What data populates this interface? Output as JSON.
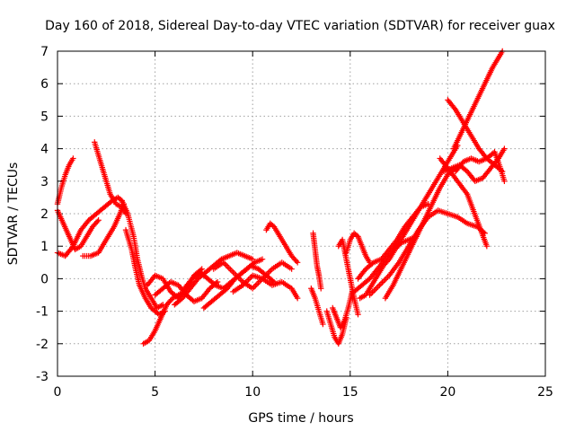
{
  "chart_data": {
    "type": "scatter",
    "title": "Day 160 of 2018, Sidereal Day-to-day VTEC variation (SDTVAR) for receiver guax",
    "xlabel": "GPS time / hours",
    "ylabel": "SDTVAR / TECUs",
    "xlim": [
      0,
      25
    ],
    "ylim": [
      -3,
      7
    ],
    "xticks": [
      "0",
      "5",
      "10",
      "15",
      "20",
      "25"
    ],
    "yticks": [
      "-3",
      "-2",
      "-1",
      "0",
      "1",
      "2",
      "3",
      "4",
      "5",
      "6",
      "7"
    ],
    "grid": true,
    "marker": "+",
    "color": "#ff0000",
    "series": [
      {
        "x": [
          0.0,
          0.2,
          0.4,
          0.6,
          0.8
        ],
        "y": [
          2.3,
          2.8,
          3.2,
          3.5,
          3.7
        ]
      },
      {
        "x": [
          0.0,
          0.3,
          0.6,
          0.9,
          1.2,
          1.5,
          1.8,
          2.1
        ],
        "y": [
          2.1,
          1.7,
          1.3,
          0.9,
          1.0,
          1.3,
          1.6,
          1.8
        ]
      },
      {
        "x": [
          0.0,
          0.4,
          0.8,
          1.2,
          1.6,
          2.0,
          2.4,
          2.8,
          3.1,
          3.3
        ],
        "y": [
          0.8,
          0.7,
          1.0,
          1.5,
          1.8,
          2.0,
          2.2,
          2.4,
          2.5,
          2.4
        ]
      },
      {
        "x": [
          1.3,
          1.7,
          2.1,
          2.5,
          2.9,
          3.2,
          3.4
        ],
        "y": [
          0.7,
          0.7,
          0.8,
          1.2,
          1.6,
          2.0,
          2.3
        ]
      },
      {
        "x": [
          1.9,
          2.1,
          2.4,
          2.7,
          3.0,
          3.3,
          3.5
        ],
        "y": [
          4.2,
          3.8,
          3.2,
          2.6,
          2.3,
          2.2,
          2.0
        ]
      },
      {
        "x": [
          3.3,
          3.6,
          3.9,
          4.1,
          4.3,
          4.5,
          4.8,
          5.1,
          5.4
        ],
        "y": [
          2.4,
          2.0,
          1.3,
          0.6,
          0.1,
          -0.3,
          -0.6,
          -0.9,
          -0.8
        ]
      },
      {
        "x": [
          3.5,
          3.8,
          4.0,
          4.2,
          4.5,
          4.8,
          5.2,
          5.5
        ],
        "y": [
          1.5,
          0.9,
          0.3,
          -0.2,
          -0.6,
          -0.9,
          -1.1,
          -1.0
        ]
      },
      {
        "x": [
          4.4,
          4.7,
          5.0,
          5.3,
          5.6,
          5.9,
          6.2,
          6.5
        ],
        "y": [
          -2.0,
          -1.9,
          -1.6,
          -1.2,
          -0.8,
          -0.6,
          -0.5,
          -0.4
        ]
      },
      {
        "x": [
          4.6,
          5.0,
          5.4,
          5.8,
          6.2,
          6.6,
          7.0,
          7.4
        ],
        "y": [
          -0.2,
          0.1,
          0.0,
          -0.4,
          -0.6,
          -0.3,
          0.1,
          0.3
        ]
      },
      {
        "x": [
          5.0,
          5.4,
          5.8,
          6.2,
          6.6,
          7.0,
          7.4,
          7.8,
          8.2
        ],
        "y": [
          -0.5,
          -0.3,
          -0.1,
          -0.2,
          -0.5,
          -0.7,
          -0.6,
          -0.3,
          -0.1
        ]
      },
      {
        "x": [
          6.0,
          6.4,
          6.8,
          7.2,
          7.6,
          8.0,
          8.4,
          8.8,
          9.2,
          9.6,
          10.0
        ],
        "y": [
          -0.8,
          -0.6,
          -0.3,
          0.0,
          0.2,
          0.4,
          0.6,
          0.7,
          0.8,
          0.7,
          0.6
        ]
      },
      {
        "x": [
          6.5,
          6.9,
          7.3,
          7.7,
          8.1,
          8.5,
          8.9,
          9.3,
          9.7,
          10.1,
          10.5
        ],
        "y": [
          -0.3,
          0.0,
          0.2,
          0.0,
          -0.2,
          -0.3,
          -0.1,
          0.1,
          0.3,
          0.5,
          0.6
        ]
      },
      {
        "x": [
          7.5,
          7.9,
          8.3,
          8.7,
          9.1,
          9.5,
          9.9,
          10.3,
          10.7,
          11.1
        ],
        "y": [
          -0.9,
          -0.7,
          -0.5,
          -0.3,
          0.0,
          0.2,
          0.4,
          0.3,
          0.1,
          -0.1
        ]
      },
      {
        "x": [
          8.0,
          8.5,
          9.0,
          9.5,
          10.0,
          10.5,
          11.0,
          11.5,
          12.0
        ],
        "y": [
          0.3,
          0.5,
          0.2,
          -0.1,
          -0.3,
          0.0,
          0.3,
          0.5,
          0.3
        ]
      },
      {
        "x": [
          9.0,
          9.5,
          10.0,
          10.5,
          11.0,
          11.5,
          12.0,
          12.3
        ],
        "y": [
          -0.4,
          -0.2,
          0.1,
          0.0,
          -0.2,
          -0.1,
          -0.3,
          -0.6
        ]
      },
      {
        "x": [
          10.7,
          10.9,
          11.1,
          11.4,
          11.7,
          12.0,
          12.3
        ],
        "y": [
          1.5,
          1.7,
          1.6,
          1.3,
          1.0,
          0.7,
          0.5
        ]
      },
      {
        "x": [
          13.1,
          13.2,
          13.3,
          13.4,
          13.5
        ],
        "y": [
          1.4,
          0.9,
          0.4,
          0.1,
          -0.3
        ]
      },
      {
        "x": [
          13.0,
          13.2,
          13.4,
          13.6
        ],
        "y": [
          -0.3,
          -0.6,
          -1.0,
          -1.4
        ]
      },
      {
        "x": [
          13.8,
          14.0,
          14.2,
          14.4,
          14.6,
          14.8
        ],
        "y": [
          -1.0,
          -1.4,
          -1.8,
          -2.0,
          -1.7,
          -1.2
        ]
      },
      {
        "x": [
          14.1,
          14.3,
          14.5,
          14.7,
          14.9,
          15.1
        ],
        "y": [
          -0.9,
          -1.2,
          -1.5,
          -1.3,
          -0.9,
          -0.4
        ]
      },
      {
        "x": [
          14.4,
          14.6,
          14.8,
          15.0,
          15.2,
          15.4
        ],
        "y": [
          1.0,
          1.2,
          0.6,
          0.0,
          -0.6,
          -1.1
        ]
      },
      {
        "x": [
          14.8,
          15.0,
          15.2,
          15.4,
          15.6,
          15.8,
          16.0
        ],
        "y": [
          0.8,
          1.2,
          1.4,
          1.3,
          1.0,
          0.7,
          0.5
        ]
      },
      {
        "x": [
          15.2,
          15.6,
          16.0,
          16.4,
          16.8,
          17.2,
          17.6,
          18.0,
          18.4
        ],
        "y": [
          -0.4,
          -0.2,
          0.0,
          0.3,
          0.6,
          0.9,
          1.1,
          1.2,
          1.3
        ]
      },
      {
        "x": [
          15.4,
          15.8,
          16.2,
          16.6,
          17.0,
          17.4,
          17.8,
          18.2,
          18.6,
          19.0
        ],
        "y": [
          0.0,
          0.3,
          0.5,
          0.6,
          0.9,
          1.2,
          1.6,
          1.9,
          2.2,
          2.3
        ]
      },
      {
        "x": [
          15.5,
          15.8,
          16.1,
          16.4,
          16.7,
          17.0,
          17.3,
          17.6
        ],
        "y": [
          -0.6,
          -0.5,
          -0.2,
          0.1,
          0.4,
          0.6,
          0.9,
          1.1
        ]
      },
      {
        "x": [
          16.0,
          16.5,
          17.0,
          17.5,
          18.0,
          18.5,
          19.0,
          19.5,
          20.0,
          20.5,
          21.0,
          21.5,
          21.9
        ],
        "y": [
          -0.5,
          -0.2,
          0.1,
          0.5,
          1.0,
          1.5,
          1.9,
          2.1,
          2.0,
          1.9,
          1.7,
          1.6,
          1.4
        ]
      },
      {
        "x": [
          16.8,
          17.2,
          17.6,
          18.0,
          18.4,
          18.8,
          19.2,
          19.6,
          20.0,
          20.4
        ],
        "y": [
          -0.6,
          -0.2,
          0.3,
          0.8,
          1.3,
          1.8,
          2.3,
          2.8,
          3.2,
          3.4
        ]
      },
      {
        "x": [
          17.3,
          17.7,
          18.1,
          18.5,
          18.9,
          19.3,
          19.7,
          20.1,
          20.5
        ],
        "y": [
          1.0,
          1.3,
          1.7,
          2.1,
          2.5,
          2.9,
          3.3,
          3.7,
          4.1
        ]
      },
      {
        "x": [
          20.0,
          20.4,
          20.8,
          21.2,
          21.6,
          22.0,
          22.4,
          22.8
        ],
        "y": [
          5.5,
          5.2,
          4.8,
          4.4,
          4.0,
          3.7,
          3.5,
          3.3
        ]
      },
      {
        "x": [
          20.3,
          20.7,
          21.1,
          21.5,
          21.9,
          22.3,
          22.8
        ],
        "y": [
          4.0,
          4.5,
          5.0,
          5.5,
          6.0,
          6.5,
          7.0
        ]
      },
      {
        "x": [
          19.8,
          20.2,
          20.6,
          21.0,
          21.4,
          21.8,
          22.2,
          22.6,
          22.9
        ],
        "y": [
          3.3,
          3.4,
          3.5,
          3.3,
          3.0,
          3.1,
          3.4,
          3.7,
          4.0
        ]
      },
      {
        "x": [
          20.4,
          20.8,
          21.2,
          21.6,
          22.0,
          22.4,
          22.7,
          22.9
        ],
        "y": [
          3.3,
          3.6,
          3.7,
          3.6,
          3.7,
          3.9,
          3.4,
          3.0
        ]
      },
      {
        "x": [
          19.6,
          20.0,
          20.5,
          21.0,
          21.5,
          22.0
        ],
        "y": [
          3.7,
          3.4,
          3.0,
          2.6,
          1.8,
          1.0
        ]
      }
    ]
  }
}
